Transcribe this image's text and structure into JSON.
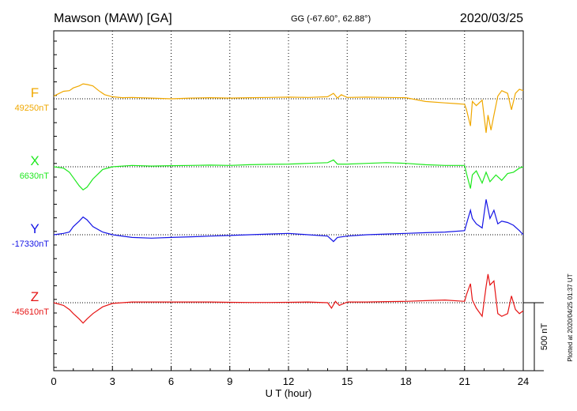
{
  "chart_data": {
    "type": "line",
    "title": "Mawson (MAW)  [GA]",
    "coords": "GG (-67.60°,  62.88°)",
    "date": "2020/03/25",
    "xlabel": "U T (hour)",
    "xlim": [
      0,
      24
    ],
    "xticks": [
      0,
      3,
      6,
      9,
      12,
      15,
      18,
      21,
      24
    ],
    "grid": "dotted vertical lines every 3 hours",
    "scale_bar": "500 nT",
    "plotted_note": "Plotted at 2020/04/25 01:37 UT",
    "series": [
      {
        "name": "F",
        "baseline": "49250nT",
        "color": "#f0a800",
        "points": [
          [
            0,
            20
          ],
          [
            0.5,
            55
          ],
          [
            0.8,
            60
          ],
          [
            1,
            80
          ],
          [
            1.3,
            95
          ],
          [
            1.5,
            110
          ],
          [
            1.7,
            105
          ],
          [
            2,
            95
          ],
          [
            2.3,
            60
          ],
          [
            2.6,
            30
          ],
          [
            3,
            15
          ],
          [
            3.5,
            8
          ],
          [
            4,
            10
          ],
          [
            5,
            5
          ],
          [
            6,
            0
          ],
          [
            7,
            5
          ],
          [
            8,
            8
          ],
          [
            9,
            5
          ],
          [
            10,
            8
          ],
          [
            11,
            10
          ],
          [
            12,
            12
          ],
          [
            13,
            10
          ],
          [
            14,
            15
          ],
          [
            14.3,
            40
          ],
          [
            14.5,
            5
          ],
          [
            14.7,
            30
          ],
          [
            15,
            10
          ],
          [
            16,
            12
          ],
          [
            17,
            10
          ],
          [
            18,
            8
          ],
          [
            19,
            -20
          ],
          [
            20,
            -30
          ],
          [
            20.5,
            -35
          ],
          [
            21,
            -40
          ],
          [
            21.1,
            -80
          ],
          [
            21.3,
            -200
          ],
          [
            21.4,
            -20
          ],
          [
            21.6,
            -50
          ],
          [
            21.9,
            -10
          ],
          [
            22.1,
            -250
          ],
          [
            22.2,
            -120
          ],
          [
            22.35,
            -230
          ],
          [
            22.5,
            -120
          ],
          [
            22.7,
            20
          ],
          [
            22.9,
            60
          ],
          [
            23.2,
            40
          ],
          [
            23.4,
            -80
          ],
          [
            23.6,
            40
          ],
          [
            23.8,
            70
          ],
          [
            24,
            60
          ]
        ]
      },
      {
        "name": "X",
        "baseline": "6630nT",
        "color": "#1ee81e",
        "points": [
          [
            0,
            0
          ],
          [
            0.5,
            -10
          ],
          [
            0.8,
            -40
          ],
          [
            1,
            -80
          ],
          [
            1.3,
            -140
          ],
          [
            1.5,
            -170
          ],
          [
            1.7,
            -150
          ],
          [
            2,
            -90
          ],
          [
            2.5,
            -20
          ],
          [
            3,
            0
          ],
          [
            4,
            10
          ],
          [
            5,
            5
          ],
          [
            6,
            8
          ],
          [
            7,
            10
          ],
          [
            8,
            12
          ],
          [
            9,
            10
          ],
          [
            10,
            15
          ],
          [
            11,
            18
          ],
          [
            12,
            20
          ],
          [
            13,
            25
          ],
          [
            14,
            30
          ],
          [
            14.3,
            50
          ],
          [
            14.5,
            20
          ],
          [
            15,
            20
          ],
          [
            16,
            25
          ],
          [
            17,
            30
          ],
          [
            18,
            25
          ],
          [
            19,
            15
          ],
          [
            20,
            10
          ],
          [
            21,
            10
          ],
          [
            21.1,
            -50
          ],
          [
            21.3,
            -160
          ],
          [
            21.4,
            -60
          ],
          [
            21.6,
            -30
          ],
          [
            21.9,
            -120
          ],
          [
            22.1,
            -40
          ],
          [
            22.3,
            -110
          ],
          [
            22.6,
            -60
          ],
          [
            22.9,
            -100
          ],
          [
            23.2,
            -50
          ],
          [
            23.5,
            -40
          ],
          [
            23.8,
            -10
          ],
          [
            24,
            0
          ]
        ]
      },
      {
        "name": "Y",
        "baseline": "-17330nT",
        "color": "#1414e6",
        "points": [
          [
            0,
            0
          ],
          [
            0.5,
            10
          ],
          [
            0.8,
            20
          ],
          [
            1,
            60
          ],
          [
            1.3,
            100
          ],
          [
            1.5,
            130
          ],
          [
            1.7,
            110
          ],
          [
            2,
            60
          ],
          [
            2.5,
            20
          ],
          [
            3,
            0
          ],
          [
            4,
            -20
          ],
          [
            5,
            -25
          ],
          [
            6,
            -20
          ],
          [
            7,
            -15
          ],
          [
            8,
            -10
          ],
          [
            9,
            -5
          ],
          [
            10,
            0
          ],
          [
            11,
            5
          ],
          [
            12,
            10
          ],
          [
            13,
            0
          ],
          [
            14,
            -10
          ],
          [
            14.3,
            -50
          ],
          [
            14.5,
            -20
          ],
          [
            15,
            -10
          ],
          [
            16,
            0
          ],
          [
            17,
            5
          ],
          [
            18,
            10
          ],
          [
            19,
            15
          ],
          [
            20,
            20
          ],
          [
            21,
            30
          ],
          [
            21.1,
            80
          ],
          [
            21.3,
            180
          ],
          [
            21.4,
            120
          ],
          [
            21.6,
            80
          ],
          [
            21.9,
            50
          ],
          [
            22.1,
            260
          ],
          [
            22.3,
            120
          ],
          [
            22.5,
            180
          ],
          [
            22.7,
            80
          ],
          [
            22.9,
            100
          ],
          [
            23.2,
            90
          ],
          [
            23.5,
            70
          ],
          [
            23.8,
            30
          ],
          [
            24,
            0
          ]
        ]
      },
      {
        "name": "Z",
        "baseline": "-45610nT",
        "color": "#e61414",
        "points": [
          [
            0,
            0
          ],
          [
            0.5,
            -20
          ],
          [
            0.8,
            -50
          ],
          [
            1,
            -80
          ],
          [
            1.3,
            -120
          ],
          [
            1.5,
            -150
          ],
          [
            1.7,
            -120
          ],
          [
            2,
            -80
          ],
          [
            2.5,
            -30
          ],
          [
            3,
            -5
          ],
          [
            4,
            5
          ],
          [
            5,
            5
          ],
          [
            6,
            5
          ],
          [
            7,
            5
          ],
          [
            8,
            5
          ],
          [
            9,
            3
          ],
          [
            10,
            2
          ],
          [
            11,
            2
          ],
          [
            12,
            3
          ],
          [
            13,
            5
          ],
          [
            14,
            0
          ],
          [
            14.2,
            -40
          ],
          [
            14.4,
            10
          ],
          [
            14.6,
            -20
          ],
          [
            15,
            5
          ],
          [
            16,
            5
          ],
          [
            17,
            8
          ],
          [
            18,
            10
          ],
          [
            19,
            15
          ],
          [
            20,
            20
          ],
          [
            21,
            10
          ],
          [
            21.1,
            60
          ],
          [
            21.3,
            140
          ],
          [
            21.4,
            20
          ],
          [
            21.6,
            -40
          ],
          [
            21.9,
            -100
          ],
          [
            22.1,
            120
          ],
          [
            22.2,
            210
          ],
          [
            22.3,
            130
          ],
          [
            22.5,
            160
          ],
          [
            22.7,
            -80
          ],
          [
            22.9,
            -100
          ],
          [
            23.2,
            -80
          ],
          [
            23.4,
            50
          ],
          [
            23.6,
            -50
          ],
          [
            23.8,
            -80
          ],
          [
            24,
            -60
          ]
        ]
      }
    ]
  }
}
